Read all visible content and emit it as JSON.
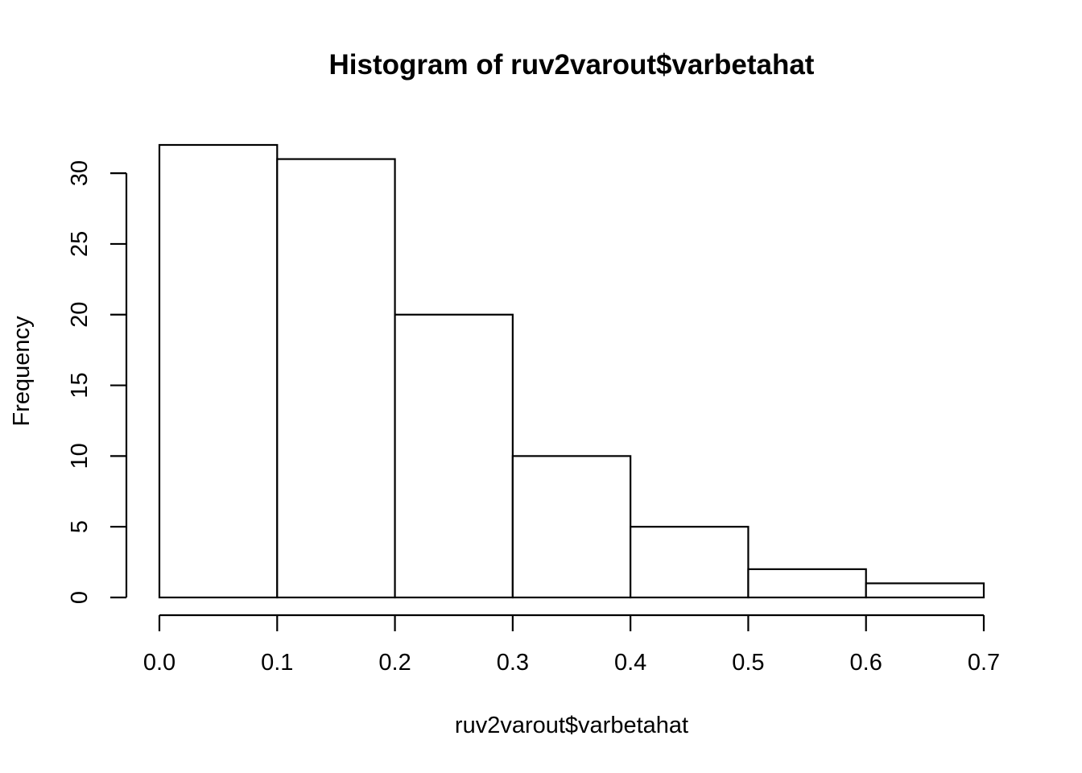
{
  "chart_data": {
    "type": "bar",
    "title": "Histogram of ruv2varout$varbetahat",
    "xlabel": "ruv2varout$varbetahat",
    "ylabel": "Frequency",
    "bins": [
      {
        "x0": 0.0,
        "x1": 0.1,
        "count": 32
      },
      {
        "x0": 0.1,
        "x1": 0.2,
        "count": 31
      },
      {
        "x0": 0.2,
        "x1": 0.3,
        "count": 20
      },
      {
        "x0": 0.3,
        "x1": 0.4,
        "count": 10
      },
      {
        "x0": 0.4,
        "x1": 0.5,
        "count": 5
      },
      {
        "x0": 0.5,
        "x1": 0.6,
        "count": 2
      },
      {
        "x0": 0.6,
        "x1": 0.7,
        "count": 1
      }
    ],
    "xlim": [
      0.0,
      0.7
    ],
    "ylim": [
      0,
      32
    ],
    "x_ticks": [
      "0.0",
      "0.1",
      "0.2",
      "0.3",
      "0.4",
      "0.5",
      "0.6",
      "0.7"
    ],
    "y_ticks": [
      "0",
      "5",
      "10",
      "15",
      "20",
      "25",
      "30"
    ],
    "grid": false,
    "bar_fill": "#ffffff",
    "bar_stroke": "#000000"
  }
}
